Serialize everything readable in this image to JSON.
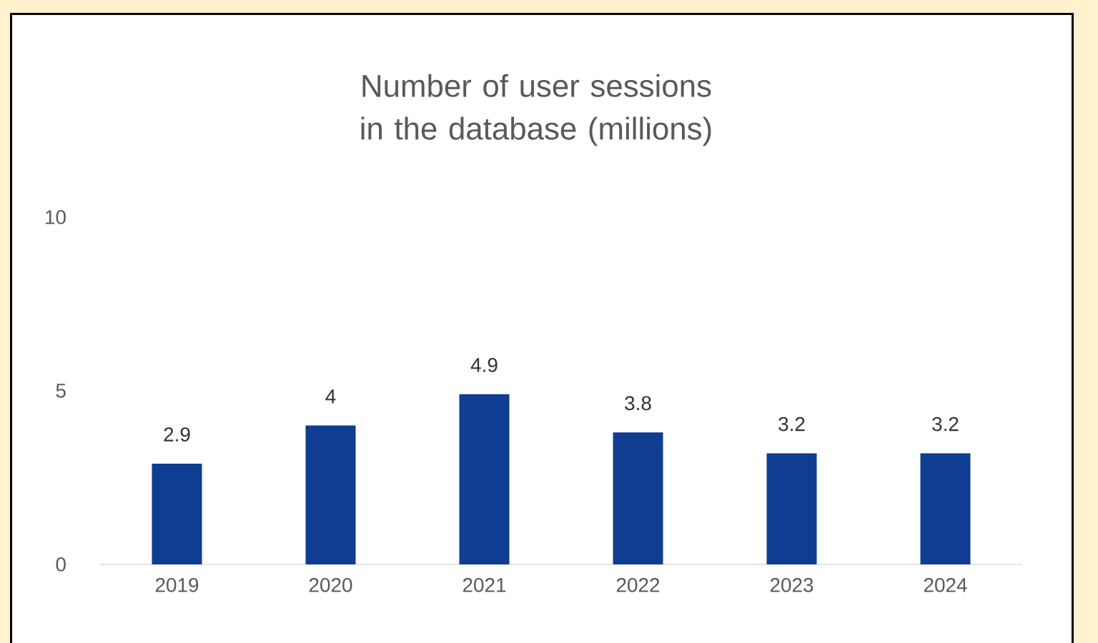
{
  "chart_data": {
    "type": "bar",
    "title": "Number of user sessions in the database (millions)",
    "categories": [
      "2019",
      "2020",
      "2021",
      "2022",
      "2023",
      "2024"
    ],
    "values": [
      2.9,
      4,
      4.9,
      3.8,
      3.2,
      3.2
    ],
    "color": "#0f3d91",
    "ylim": [
      0,
      10
    ],
    "yticks": [
      0,
      5,
      10
    ],
    "data_labels": true
  }
}
